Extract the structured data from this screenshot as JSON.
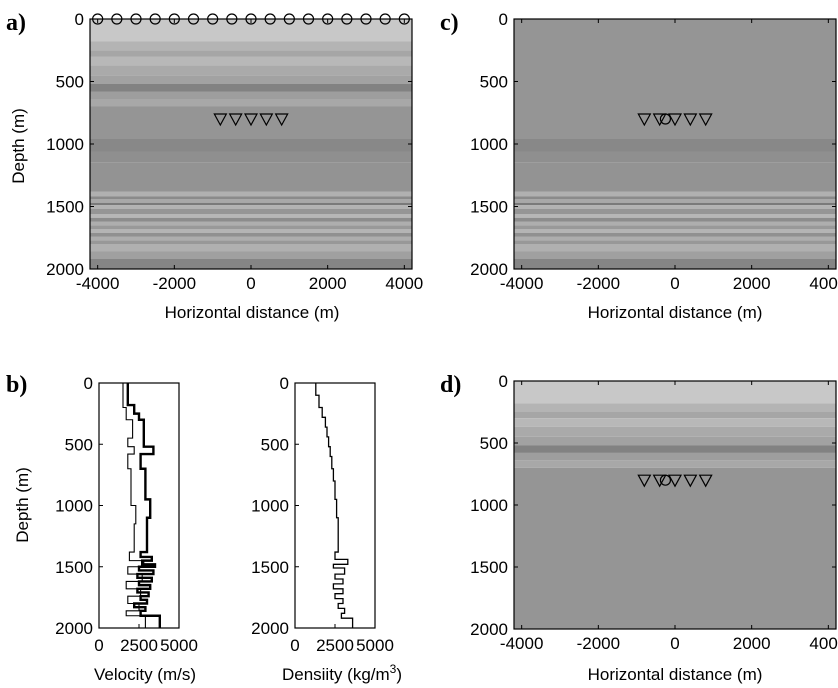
{
  "figure": {
    "panels": [
      {
        "id": "a",
        "label": "a)",
        "xlabel": "Horizontal distance (m)",
        "ylabel": "Depth (m)"
      },
      {
        "id": "b",
        "label": "b)",
        "ylabel": "Depth (m)"
      },
      {
        "id": "c",
        "label": "c)",
        "xlabel": "Horizontal distance (m)"
      },
      {
        "id": "d",
        "label": "d)",
        "xlabel": "Horizontal distance (m)"
      }
    ],
    "velocity_xlabel": "Velocity (m/s)",
    "density_xlabel": "Densiity (kg/m",
    "density_xlabel_sup": "3",
    "density_xlabel_tail": ")"
  },
  "chart_data": [
    {
      "id": "a",
      "type": "heatmap",
      "description_kind": "layered subsurface model with source and receiver markers",
      "xlabel": "Horizontal distance (m)",
      "ylabel": "Depth (m)",
      "xlim": [
        -4200,
        4200
      ],
      "ylim": [
        2000,
        0
      ],
      "xticks": [
        -4000,
        -2000,
        0,
        2000,
        4000
      ],
      "yticks": [
        0,
        500,
        1000,
        1500,
        2000
      ],
      "layers": [
        {
          "top": 0,
          "bottom": 180,
          "shade": "#c8c8c8"
        },
        {
          "top": 180,
          "bottom": 250,
          "shade": "#b4b4b4"
        },
        {
          "top": 250,
          "bottom": 300,
          "shade": "#a6a6a6"
        },
        {
          "top": 300,
          "bottom": 370,
          "shade": "#b8b8b8"
        },
        {
          "top": 370,
          "bottom": 450,
          "shade": "#aaaaaa"
        },
        {
          "top": 450,
          "bottom": 520,
          "shade": "#a2a2a2"
        },
        {
          "top": 520,
          "bottom": 580,
          "shade": "#828282"
        },
        {
          "top": 580,
          "bottom": 640,
          "shade": "#9e9e9e"
        },
        {
          "top": 640,
          "bottom": 700,
          "shade": "#a8a8a8"
        },
        {
          "top": 700,
          "bottom": 960,
          "shade": "#959595"
        },
        {
          "top": 960,
          "bottom": 1060,
          "shade": "#888888"
        },
        {
          "top": 1060,
          "bottom": 1150,
          "shade": "#8f8f8f"
        },
        {
          "top": 1150,
          "bottom": 1380,
          "shade": "#939393"
        },
        {
          "top": 1380,
          "bottom": 1420,
          "shade": "#b0b0b0"
        },
        {
          "top": 1420,
          "bottom": 1440,
          "shade": "#8a8a8a"
        },
        {
          "top": 1440,
          "bottom": 1470,
          "shade": "#a8a8a8"
        },
        {
          "top": 1470,
          "bottom": 1490,
          "shade": "#7a7a7a"
        },
        {
          "top": 1490,
          "bottom": 1520,
          "shade": "#b2b2b2"
        },
        {
          "top": 1520,
          "bottom": 1560,
          "shade": "#959595"
        },
        {
          "top": 1560,
          "bottom": 1590,
          "shade": "#b6b6b6"
        },
        {
          "top": 1590,
          "bottom": 1620,
          "shade": "#8c8c8c"
        },
        {
          "top": 1620,
          "bottom": 1650,
          "shade": "#aeaeae"
        },
        {
          "top": 1650,
          "bottom": 1680,
          "shade": "#999999"
        },
        {
          "top": 1680,
          "bottom": 1710,
          "shade": "#b4b4b4"
        },
        {
          "top": 1710,
          "bottom": 1740,
          "shade": "#909090"
        },
        {
          "top": 1740,
          "bottom": 1770,
          "shade": "#adadad"
        },
        {
          "top": 1770,
          "bottom": 1800,
          "shade": "#989898"
        },
        {
          "top": 1800,
          "bottom": 1860,
          "shade": "#b0b0b0"
        },
        {
          "top": 1860,
          "bottom": 1920,
          "shade": "#a0a0a0"
        },
        {
          "top": 1920,
          "bottom": 2000,
          "shade": "#858585"
        }
      ],
      "sources": {
        "depth": 0,
        "x": [
          -4000,
          -3500,
          -3000,
          -2500,
          -2000,
          -1500,
          -1000,
          -500,
          0,
          500,
          1000,
          1500,
          2000,
          2500,
          3000,
          3500,
          4000
        ]
      },
      "receivers": {
        "depth": 800,
        "x": [
          -800,
          -400,
          0,
          400,
          800
        ]
      }
    },
    {
      "id": "b",
      "type": "line",
      "series": [
        {
          "ylabel": "Depth (m)",
          "xlabel": "Velocity (m/s)",
          "xlim": [
            0,
            5000
          ],
          "ylim": [
            2000,
            0
          ],
          "xticks": [
            0,
            2500,
            5000
          ],
          "yticks": [
            0,
            500,
            1000,
            1500,
            2000
          ],
          "log_thick": {
            "depth": [
              0,
              180,
              180,
              250,
              250,
              300,
              300,
              520,
              520,
              580,
              580,
              700,
              700,
              950,
              950,
              1100,
              1100,
              1380,
              1380,
              1420,
              1420,
              1450,
              1450,
              1480,
              1480,
              1500,
              1500,
              1530,
              1530,
              1560,
              1560,
              1590,
              1590,
              1620,
              1620,
              1650,
              1650,
              1680,
              1680,
              1710,
              1710,
              1740,
              1740,
              1770,
              1770,
              1800,
              1800,
              1830,
              1830,
              1860,
              1860,
              1900,
              1900,
              2000
            ],
            "value": [
              1800,
              1800,
              2200,
              2200,
              2500,
              2500,
              2800,
              2800,
              3400,
              3400,
              2600,
              2600,
              2900,
              2900,
              3200,
              3200,
              3000,
              3000,
              2600,
              2600,
              3300,
              3300,
              2700,
              2700,
              3500,
              3500,
              2500,
              2500,
              3400,
              3400,
              2400,
              2400,
              3300,
              3300,
              2500,
              2500,
              3200,
              3200,
              2400,
              2400,
              3100,
              3100,
              2600,
              2600,
              3000,
              3000,
              2200,
              2200,
              2900,
              2900,
              2600,
              2600,
              3800,
              3800
            ]
          },
          "log_thin": {
            "depth": [
              0,
              200,
              200,
              300,
              300,
              450,
              450,
              520,
              520,
              580,
              580,
              700,
              700,
              1000,
              1000,
              1150,
              1150,
              1380,
              1380,
              1450,
              1450,
              1500,
              1500,
              1560,
              1560,
              1620,
              1620,
              1680,
              1680,
              1740,
              1740,
              1800,
              1800,
              1860,
              1860,
              1900,
              1900,
              2000
            ],
            "value": [
              1500,
              1500,
              1700,
              1700,
              2100,
              2100,
              1800,
              1800,
              2200,
              2200,
              1800,
              1800,
              2000,
              2000,
              2300,
              2300,
              2200,
              2200,
              1900,
              1900,
              2800,
              2800,
              1800,
              1800,
              2700,
              2700,
              1700,
              1700,
              2600,
              2600,
              1800,
              1800,
              2500,
              2500,
              1700,
              1700,
              2900,
              2900
            ]
          }
        },
        {
          "ylabel": "",
          "xlabel": "Densiity (kg/m3)",
          "xlim": [
            0,
            5000
          ],
          "ylim": [
            2000,
            0
          ],
          "xticks": [
            0,
            2500,
            5000
          ],
          "yticks": [
            0,
            500,
            1000,
            1500,
            2000
          ],
          "log": {
            "depth": [
              0,
              100,
              100,
              200,
              200,
              280,
              280,
              360,
              360,
              440,
              440,
              520,
              520,
              600,
              600,
              700,
              700,
              800,
              800,
              950,
              950,
              1100,
              1100,
              1380,
              1380,
              1440,
              1440,
              1480,
              1480,
              1510,
              1510,
              1560,
              1560,
              1600,
              1600,
              1640,
              1640,
              1680,
              1680,
              1720,
              1720,
              1760,
              1760,
              1800,
              1800,
              1840,
              1840,
              1880,
              1880,
              1920,
              1920,
              2000
            ],
            "value": [
              1300,
              1300,
              1500,
              1500,
              1700,
              1700,
              1900,
              1900,
              2000,
              2000,
              2100,
              2100,
              2200,
              2200,
              2300,
              2300,
              2400,
              2400,
              2500,
              2500,
              2600,
              2600,
              2700,
              2700,
              2500,
              2500,
              3300,
              3300,
              2400,
              2400,
              3100,
              3100,
              2500,
              2500,
              3000,
              3000,
              2400,
              2400,
              3000,
              3000,
              2500,
              2500,
              3000,
              3000,
              2700,
              2700,
              3100,
              3100,
              2900,
              2900,
              3600,
              3600
            ]
          }
        }
      ]
    },
    {
      "id": "c",
      "type": "heatmap",
      "xlabel": "Horizontal distance (m)",
      "ylabel": "",
      "xlim": [
        -4200,
        4200
      ],
      "ylim": [
        2000,
        0
      ],
      "xticks": [
        -4000,
        -2000,
        0,
        2000,
        4000
      ],
      "yticks": [
        0,
        500,
        1000,
        1500,
        2000
      ],
      "layers": [
        {
          "top": 0,
          "bottom": 960,
          "shade": "#959595"
        },
        {
          "top": 960,
          "bottom": 1060,
          "shade": "#888888"
        },
        {
          "top": 1060,
          "bottom": 1150,
          "shade": "#8f8f8f"
        },
        {
          "top": 1150,
          "bottom": 1380,
          "shade": "#939393"
        },
        {
          "top": 1380,
          "bottom": 1420,
          "shade": "#b0b0b0"
        },
        {
          "top": 1420,
          "bottom": 1440,
          "shade": "#8a8a8a"
        },
        {
          "top": 1440,
          "bottom": 1470,
          "shade": "#a8a8a8"
        },
        {
          "top": 1470,
          "bottom": 1490,
          "shade": "#7a7a7a"
        },
        {
          "top": 1490,
          "bottom": 1520,
          "shade": "#b2b2b2"
        },
        {
          "top": 1520,
          "bottom": 1560,
          "shade": "#959595"
        },
        {
          "top": 1560,
          "bottom": 1590,
          "shade": "#b6b6b6"
        },
        {
          "top": 1590,
          "bottom": 1620,
          "shade": "#8c8c8c"
        },
        {
          "top": 1620,
          "bottom": 1650,
          "shade": "#aeaeae"
        },
        {
          "top": 1650,
          "bottom": 1680,
          "shade": "#999999"
        },
        {
          "top": 1680,
          "bottom": 1710,
          "shade": "#b4b4b4"
        },
        {
          "top": 1710,
          "bottom": 1740,
          "shade": "#909090"
        },
        {
          "top": 1740,
          "bottom": 1770,
          "shade": "#adadad"
        },
        {
          "top": 1770,
          "bottom": 1800,
          "shade": "#989898"
        },
        {
          "top": 1800,
          "bottom": 1860,
          "shade": "#b0b0b0"
        },
        {
          "top": 1860,
          "bottom": 1920,
          "shade": "#a0a0a0"
        },
        {
          "top": 1920,
          "bottom": 2000,
          "shade": "#858585"
        }
      ],
      "sources": {
        "depth": 800,
        "x": [
          -250
        ]
      },
      "receivers": {
        "depth": 800,
        "x": [
          -800,
          -400,
          0,
          400,
          800
        ]
      }
    },
    {
      "id": "d",
      "type": "heatmap",
      "xlabel": "Horizontal distance (m)",
      "ylabel": "",
      "xlim": [
        -4200,
        4200
      ],
      "ylim": [
        2000,
        0
      ],
      "xticks": [
        -4000,
        -2000,
        0,
        2000,
        4000
      ],
      "yticks": [
        0,
        500,
        1000,
        1500,
        2000
      ],
      "layers": [
        {
          "top": 0,
          "bottom": 180,
          "shade": "#c8c8c8"
        },
        {
          "top": 180,
          "bottom": 250,
          "shade": "#b4b4b4"
        },
        {
          "top": 250,
          "bottom": 300,
          "shade": "#a6a6a6"
        },
        {
          "top": 300,
          "bottom": 370,
          "shade": "#b8b8b8"
        },
        {
          "top": 370,
          "bottom": 450,
          "shade": "#aaaaaa"
        },
        {
          "top": 450,
          "bottom": 520,
          "shade": "#a2a2a2"
        },
        {
          "top": 520,
          "bottom": 580,
          "shade": "#828282"
        },
        {
          "top": 580,
          "bottom": 640,
          "shade": "#9e9e9e"
        },
        {
          "top": 640,
          "bottom": 700,
          "shade": "#a8a8a8"
        },
        {
          "top": 700,
          "bottom": 2000,
          "shade": "#959595"
        }
      ],
      "sources": {
        "depth": 800,
        "x": [
          -250
        ]
      },
      "receivers": {
        "depth": 800,
        "x": [
          -800,
          -400,
          0,
          400,
          800
        ]
      }
    }
  ]
}
